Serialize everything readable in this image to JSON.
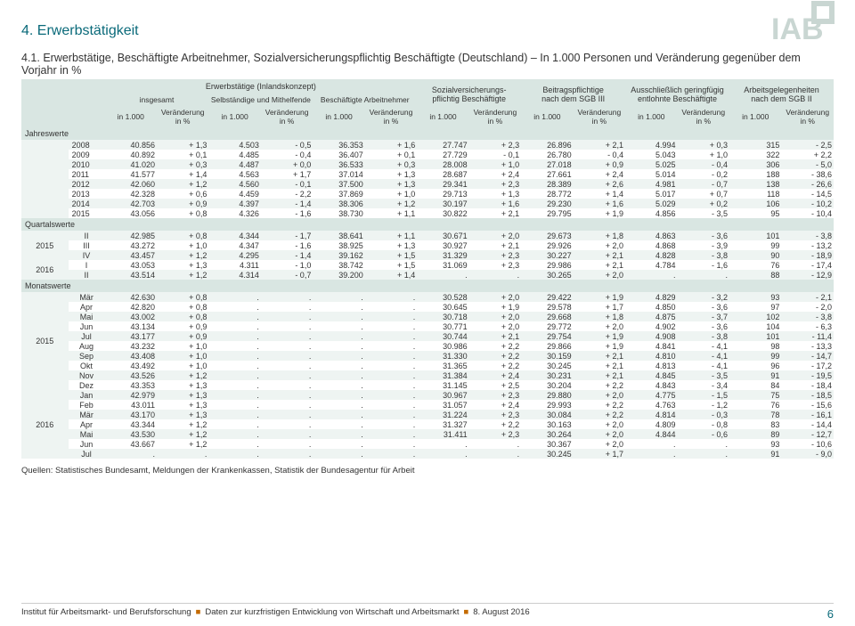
{
  "title_section": "4. Erwerbstätigkeit",
  "subtitle_prefix": "4.1. Erwerbstätige, Beschäftigte Arbeitnehmer, Sozialversicherungspflichtig Beschäftigte (Deutschland)",
  "subtitle_suffix": " – In 1.000 Personen und Veränderung gegenüber dem Vorjahr in %",
  "group_headers": [
    {
      "label": "Erwerbstätige (Inlandskonzept)",
      "span": 6
    },
    {
      "label": "Sozialversicherungs-\npflichtig Beschäftigte",
      "span": 2
    },
    {
      "label": "Beitragspflichtige\nnach dem SGB III",
      "span": 2
    },
    {
      "label": "Ausschließlich geringfügig\nentlohnte Beschäftigte",
      "span": 2
    },
    {
      "label": "Arbeitsgelegenheiten\nnach dem SGB II",
      "span": 2
    }
  ],
  "sub_headers_row1": [
    "insgesamt",
    "Selbständige und Mithelfende",
    "Beschäftigte Arbeitnehmer"
  ],
  "col_unit": "in 1.000",
  "col_delta": "Veränderung\nin %",
  "sections": [
    {
      "name": "Jahreswerte",
      "rows": [
        {
          "g": "",
          "lbl": "2008",
          "v": [
            "40.856",
            "+ 1,3",
            "4.503",
            "- 0,5",
            "36.353",
            "+ 1,6",
            "27.747",
            "+ 2,3",
            "26.896",
            "+ 2,1",
            "4.994",
            "+ 0,3",
            "315",
            "- 2,5"
          ]
        },
        {
          "g": "",
          "lbl": "2009",
          "v": [
            "40.892",
            "+ 0,1",
            "4.485",
            "- 0,4",
            "36.407",
            "+ 0,1",
            "27.729",
            "- 0,1",
            "26.780",
            "- 0,4",
            "5.043",
            "+ 1,0",
            "322",
            "+ 2,2"
          ]
        },
        {
          "g": "",
          "lbl": "2010",
          "v": [
            "41.020",
            "+ 0,3",
            "4.487",
            "+ 0,0",
            "36.533",
            "+ 0,3",
            "28.008",
            "+ 1,0",
            "27.018",
            "+ 0,9",
            "5.025",
            "- 0,4",
            "306",
            "- 5,0"
          ]
        },
        {
          "g": "",
          "lbl": "2011",
          "v": [
            "41.577",
            "+ 1,4",
            "4.563",
            "+ 1,7",
            "37.014",
            "+ 1,3",
            "28.687",
            "+ 2,4",
            "27.661",
            "+ 2,4",
            "5.014",
            "- 0,2",
            "188",
            "- 38,6"
          ]
        },
        {
          "g": "",
          "lbl": "2012",
          "v": [
            "42.060",
            "+ 1,2",
            "4.560",
            "- 0,1",
            "37.500",
            "+ 1,3",
            "29.341",
            "+ 2,3",
            "28.389",
            "+ 2,6",
            "4.981",
            "- 0,7",
            "138",
            "- 26,6"
          ]
        },
        {
          "g": "",
          "lbl": "2013",
          "v": [
            "42.328",
            "+ 0,6",
            "4.459",
            "- 2,2",
            "37.869",
            "+ 1,0",
            "29.713",
            "+ 1,3",
            "28.772",
            "+ 1,4",
            "5.017",
            "+ 0,7",
            "118",
            "- 14,5"
          ]
        },
        {
          "g": "",
          "lbl": "2014",
          "v": [
            "42.703",
            "+ 0,9",
            "4.397",
            "- 1,4",
            "38.306",
            "+ 1,2",
            "30.197",
            "+ 1,6",
            "29.230",
            "+ 1,6",
            "5.029",
            "+ 0,2",
            "106",
            "- 10,2"
          ]
        },
        {
          "g": "",
          "lbl": "2015",
          "v": [
            "43.056",
            "+ 0,8",
            "4.326",
            "- 1,6",
            "38.730",
            "+ 1,1",
            "30.822",
            "+ 2,1",
            "29.795",
            "+ 1,9",
            "4.856",
            "- 3,5",
            "95",
            "- 10,4"
          ]
        }
      ]
    },
    {
      "name": "Quartalswerte",
      "rows": [
        {
          "g": "2015",
          "lbl": "II",
          "v": [
            "42.985",
            "+ 0,8",
            "4.344",
            "- 1,7",
            "38.641",
            "+ 1,1",
            "30.671",
            "+ 2,0",
            "29.673",
            "+ 1,8",
            "4.863",
            "- 3,6",
            "101",
            "- 3,8"
          ]
        },
        {
          "g": "",
          "lbl": "III",
          "v": [
            "43.272",
            "+ 1,0",
            "4.347",
            "- 1,6",
            "38.925",
            "+ 1,3",
            "30.927",
            "+ 2,1",
            "29.926",
            "+ 2,0",
            "4.868",
            "- 3,9",
            "99",
            "- 13,2"
          ]
        },
        {
          "g": "",
          "lbl": "IV",
          "v": [
            "43.457",
            "+ 1,2",
            "4.295",
            "- 1,4",
            "39.162",
            "+ 1,5",
            "31.329",
            "+ 2,3",
            "30.227",
            "+ 2,1",
            "4.828",
            "- 3,8",
            "90",
            "- 18,9"
          ]
        },
        {
          "g": "2016",
          "lbl": "I",
          "v": [
            "43.053",
            "+ 1,3",
            "4.311",
            "- 1,0",
            "38.742",
            "+ 1,5",
            "31.069",
            "+ 2,3",
            "29.986",
            "+ 2,1",
            "4.784",
            "- 1,6",
            "76",
            "- 17,4"
          ]
        },
        {
          "g": "",
          "lbl": "II",
          "v": [
            "43.514",
            "+ 1,2",
            "4.314",
            "- 0,7",
            "39.200",
            "+ 1,4",
            ".",
            ".",
            "30.265",
            "+ 2,0",
            ".",
            ".",
            "88",
            "- 12,9"
          ]
        }
      ]
    },
    {
      "name": "Monatswerte",
      "rows": [
        {
          "g": "2015",
          "lbl": "Mär",
          "v": [
            "42.630",
            "+ 0,8",
            ".",
            ".",
            ".",
            ".",
            "30.528",
            "+ 2,0",
            "29.422",
            "+ 1,9",
            "4.829",
            "- 3,2",
            "93",
            "- 2,1"
          ]
        },
        {
          "g": "",
          "lbl": "Apr",
          "v": [
            "42.820",
            "+ 0,8",
            ".",
            ".",
            ".",
            ".",
            "30.645",
            "+ 1,9",
            "29.578",
            "+ 1,7",
            "4.850",
            "- 3,6",
            "97",
            "- 2,0"
          ]
        },
        {
          "g": "",
          "lbl": "Mai",
          "v": [
            "43.002",
            "+ 0,8",
            ".",
            ".",
            ".",
            ".",
            "30.718",
            "+ 2,0",
            "29.668",
            "+ 1,8",
            "4.875",
            "- 3,7",
            "102",
            "- 3,8"
          ]
        },
        {
          "g": "",
          "lbl": "Jun",
          "v": [
            "43.134",
            "+ 0,9",
            ".",
            ".",
            ".",
            ".",
            "30.771",
            "+ 2,0",
            "29.772",
            "+ 2,0",
            "4.902",
            "- 3,6",
            "104",
            "- 6,3"
          ]
        },
        {
          "g": "",
          "lbl": "Jul",
          "v": [
            "43.177",
            "+ 0,9",
            ".",
            ".",
            ".",
            ".",
            "30.744",
            "+ 2,1",
            "29.754",
            "+ 1,9",
            "4.908",
            "- 3,8",
            "101",
            "- 11,4"
          ]
        },
        {
          "g": "",
          "lbl": "Aug",
          "v": [
            "43.232",
            "+ 1,0",
            ".",
            ".",
            ".",
            ".",
            "30.986",
            "+ 2,2",
            "29.866",
            "+ 1,9",
            "4.841",
            "- 4,1",
            "98",
            "- 13,3"
          ]
        },
        {
          "g": "",
          "lbl": "Sep",
          "v": [
            "43.408",
            "+ 1,0",
            ".",
            ".",
            ".",
            ".",
            "31.330",
            "+ 2,2",
            "30.159",
            "+ 2,1",
            "4.810",
            "- 4,1",
            "99",
            "- 14,7"
          ]
        },
        {
          "g": "",
          "lbl": "Okt",
          "v": [
            "43.492",
            "+ 1,0",
            ".",
            ".",
            ".",
            ".",
            "31.365",
            "+ 2,2",
            "30.245",
            "+ 2,1",
            "4.813",
            "- 4,1",
            "96",
            "- 17,2"
          ]
        },
        {
          "g": "",
          "lbl": "Nov",
          "v": [
            "43.526",
            "+ 1,2",
            ".",
            ".",
            ".",
            ".",
            "31.384",
            "+ 2,4",
            "30.231",
            "+ 2,1",
            "4.845",
            "- 3,5",
            "91",
            "- 19,5"
          ]
        },
        {
          "g": "",
          "lbl": "Dez",
          "v": [
            "43.353",
            "+ 1,3",
            ".",
            ".",
            ".",
            ".",
            "31.145",
            "+ 2,5",
            "30.204",
            "+ 2,2",
            "4.843",
            "- 3,4",
            "84",
            "- 18,4"
          ]
        },
        {
          "g": "2016",
          "lbl": "Jan",
          "v": [
            "42.979",
            "+ 1,3",
            ".",
            ".",
            ".",
            ".",
            "30.967",
            "+ 2,3",
            "29.880",
            "+ 2,0",
            "4.775",
            "- 1,5",
            "75",
            "- 18,5"
          ]
        },
        {
          "g": "",
          "lbl": "Feb",
          "v": [
            "43.011",
            "+ 1,3",
            ".",
            ".",
            ".",
            ".",
            "31.057",
            "+ 2,4",
            "29.993",
            "+ 2,2",
            "4.763",
            "- 1,2",
            "76",
            "- 15,6"
          ]
        },
        {
          "g": "",
          "lbl": "Mär",
          "v": [
            "43.170",
            "+ 1,3",
            ".",
            ".",
            ".",
            ".",
            "31.224",
            "+ 2,3",
            "30.084",
            "+ 2,2",
            "4.814",
            "- 0,3",
            "78",
            "- 16,1"
          ]
        },
        {
          "g": "",
          "lbl": "Apr",
          "v": [
            "43.344",
            "+ 1,2",
            ".",
            ".",
            ".",
            ".",
            "31.327",
            "+ 2,2",
            "30.163",
            "+ 2,0",
            "4.809",
            "- 0,8",
            "83",
            "- 14,4"
          ]
        },
        {
          "g": "",
          "lbl": "Mai",
          "v": [
            "43.530",
            "+ 1,2",
            ".",
            ".",
            ".",
            ".",
            "31.411",
            "+ 2,3",
            "30.264",
            "+ 2,0",
            "4.844",
            "- 0,6",
            "89",
            "- 12,7"
          ]
        },
        {
          "g": "",
          "lbl": "Jun",
          "v": [
            "43.667",
            "+ 1,2",
            ".",
            ".",
            ".",
            ".",
            ".",
            ".",
            "30.367",
            "+ 2,0",
            ".",
            ".",
            "93",
            "- 10,6"
          ]
        },
        {
          "g": "",
          "lbl": "Jul",
          "v": [
            ".",
            ".",
            ".",
            ".",
            ".",
            ".",
            ".",
            ".",
            "30.245",
            "+ 1,7",
            ".",
            ".",
            "91",
            "- 9,0"
          ]
        }
      ]
    }
  ],
  "source": "Quellen: Statistisches Bundesamt, Meldungen der Krankenkassen, Statistik der Bundesagentur für Arbeit",
  "footer_inst": "Institut für Arbeitsmarkt- und Berufsforschung",
  "footer_mid": "Daten zur kurzfristigen Entwicklung von Wirtschaft und Arbeitsmarkt",
  "footer_date": "8. August 2016",
  "page_number": "6",
  "colors": {
    "teal": "#0a6a7a",
    "band": "#d9e6e2",
    "zebra": "#eef4f2"
  }
}
